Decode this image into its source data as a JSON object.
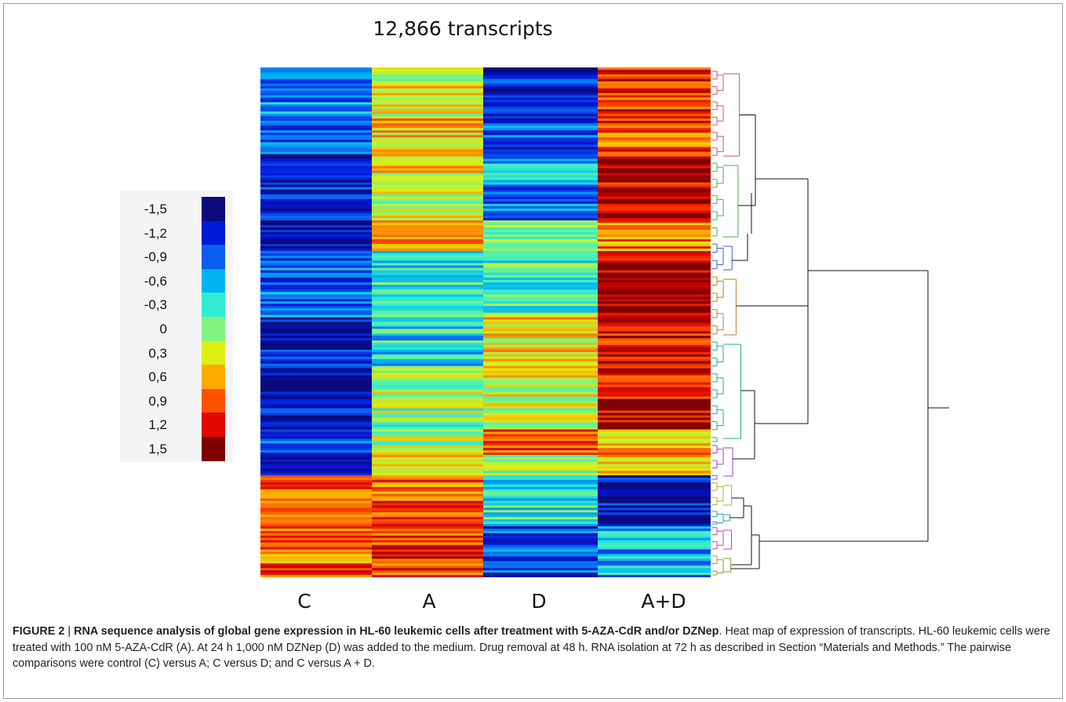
{
  "chart_data": {
    "type": "heatmap",
    "title": "12,866 transcripts",
    "columns": [
      "C",
      "A",
      "D",
      "A+D"
    ],
    "color_scale": {
      "ticks": [
        "-1,5",
        "-1,2",
        "-0,9",
        "-0,6",
        "-0,3",
        "0",
        "0,3",
        "0,6",
        "0,9",
        "1,2",
        "1,5"
      ],
      "values": [
        -1.5,
        -1.2,
        -0.9,
        -0.6,
        -0.3,
        0,
        0.3,
        0.6,
        0.9,
        1.2,
        1.5
      ],
      "colors": [
        "#0a0a7c",
        "#0018d8",
        "#0a5ef0",
        "#00b4f2",
        "#32ecd2",
        "#80f47e",
        "#dcf012",
        "#ffaa00",
        "#ff5200",
        "#e20800",
        "#7e0000"
      ]
    },
    "blocks": [
      {
        "rows": 0.1,
        "values": [
          -0.75,
          0.3,
          -1.2,
          1.0
        ]
      },
      {
        "rows": 0.07,
        "values": [
          -0.8,
          0.5,
          -0.9,
          0.9
        ]
      },
      {
        "rows": 0.06,
        "values": [
          -1.15,
          0.35,
          -0.6,
          1.2
        ]
      },
      {
        "rows": 0.07,
        "values": [
          -1.2,
          0.2,
          -0.8,
          1.45
        ]
      },
      {
        "rows": 0.06,
        "values": [
          -1.45,
          0.6,
          0.05,
          0.7
        ]
      },
      {
        "rows": 0.09,
        "values": [
          -0.8,
          -0.3,
          -0.2,
          1.45
        ]
      },
      {
        "rows": 0.04,
        "values": [
          -0.85,
          -0.25,
          -0.1,
          1.5
        ]
      },
      {
        "rows": 0.1,
        "values": [
          -1.25,
          -0.4,
          0.45,
          1.2
        ]
      },
      {
        "rows": 0.06,
        "values": [
          -1.4,
          0.1,
          0.25,
          1.15
        ]
      },
      {
        "rows": 0.06,
        "values": [
          -1.3,
          0.05,
          0.2,
          1.35
        ]
      },
      {
        "rows": 0.05,
        "values": [
          -1.05,
          0.1,
          0.95,
          0.6
        ]
      },
      {
        "rows": 0.04,
        "values": [
          -1.5,
          0.35,
          0.05,
          0.5
        ]
      },
      {
        "rows": 0.1,
        "values": [
          0.8,
          0.85,
          -0.3,
          -1.3
        ]
      },
      {
        "rows": 0.1,
        "values": [
          0.85,
          1.0,
          -1.0,
          -0.6
        ]
      }
    ]
  },
  "legend_box_color": "#f4f4f4",
  "caption": {
    "label": "FIGURE 2",
    "separator": " | ",
    "bold_title": "RNA sequence analysis of global gene expression in HL-60 leukemic cells after treatment with 5-AZA-CdR and/or DZNep",
    "body": ". Heat map of expression of transcripts. HL-60 leukemic cells were treated with 100 nM 5-AZA-CdR (A). At 24 h 1,000 nM DZNep (D) was added to the medium. Drug removal at 48 h. RNA isolation at 72 h as described in Section “Materials and Methods.” The pairwise comparisons were control (C) versus A; C versus D; and C versus A + D."
  }
}
